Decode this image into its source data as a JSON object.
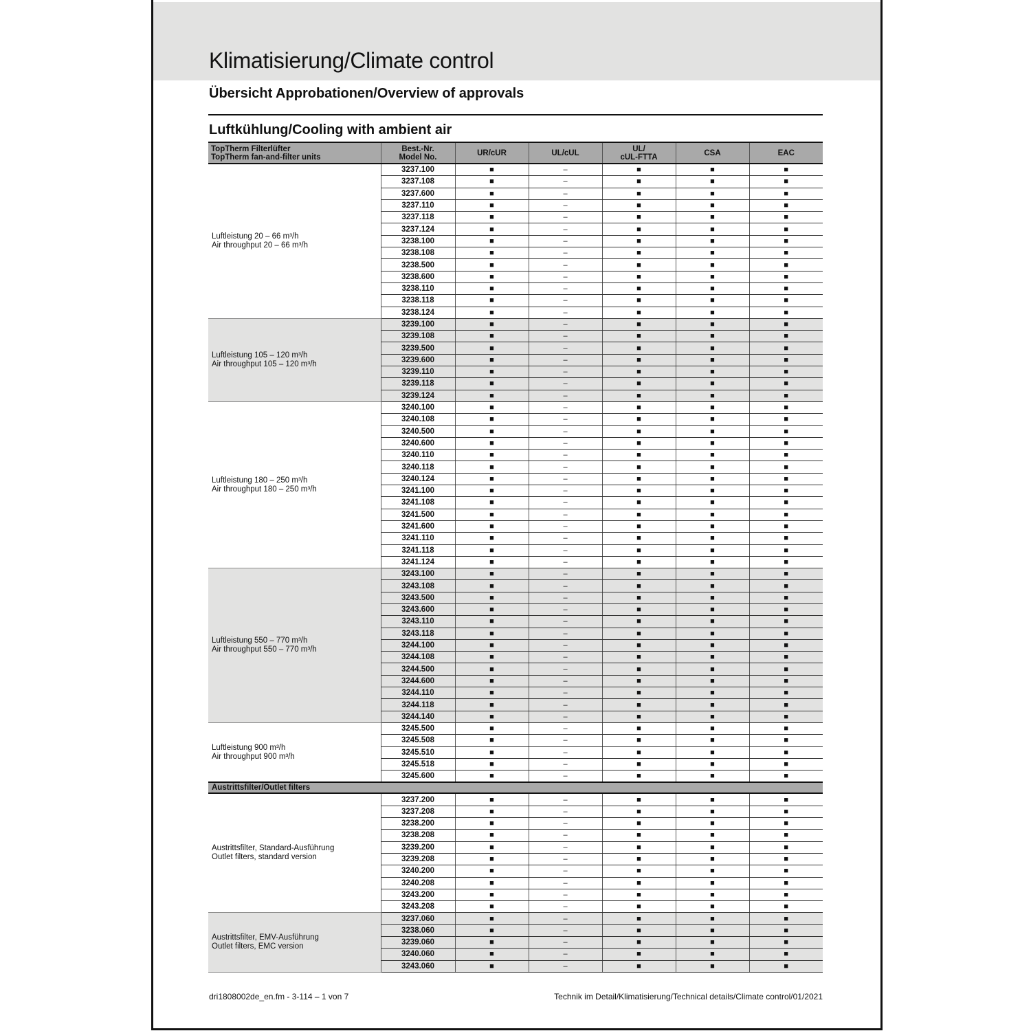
{
  "header": {
    "title": "Klimatisierung/Climate control",
    "subtitle": "Übersicht Approbationen/Overview of approvals"
  },
  "section": {
    "title": "Luftkühlung/Cooling with ambient air"
  },
  "table": {
    "columns": [
      [
        "TopTherm Filterlüfter",
        "TopTherm fan-and-filter units"
      ],
      [
        "Best.-Nr.",
        "Model No."
      ],
      [
        "UR/cUR"
      ],
      [
        "UL/cUL"
      ],
      [
        "UL/",
        "cUL-FTTA"
      ],
      [
        "CSA"
      ],
      [
        "EAC"
      ]
    ],
    "blocks": [
      {
        "groups": [
          {
            "label": [
              "Luftleistung 20 – 66 m³/h",
              "Air throughput 20 – 66 m³/h"
            ],
            "shaded": false,
            "rows": [
              {
                "model": "3237.100",
                "marks": [
                  "■",
                  "–",
                  "■",
                  "■",
                  "■"
                ]
              },
              {
                "model": "3237.108",
                "marks": [
                  "■",
                  "–",
                  "■",
                  "■",
                  "■"
                ]
              },
              {
                "model": "3237.600",
                "marks": [
                  "■",
                  "–",
                  "■",
                  "■",
                  "■"
                ]
              },
              {
                "model": "3237.110",
                "marks": [
                  "■",
                  "–",
                  "■",
                  "■",
                  "■"
                ]
              },
              {
                "model": "3237.118",
                "marks": [
                  "■",
                  "–",
                  "■",
                  "■",
                  "■"
                ]
              },
              {
                "model": "3237.124",
                "marks": [
                  "■",
                  "–",
                  "■",
                  "■",
                  "■"
                ]
              },
              {
                "model": "3238.100",
                "marks": [
                  "■",
                  "–",
                  "■",
                  "■",
                  "■"
                ]
              },
              {
                "model": "3238.108",
                "marks": [
                  "■",
                  "–",
                  "■",
                  "■",
                  "■"
                ]
              },
              {
                "model": "3238.500",
                "marks": [
                  "■",
                  "–",
                  "■",
                  "■",
                  "■"
                ]
              },
              {
                "model": "3238.600",
                "marks": [
                  "■",
                  "–",
                  "■",
                  "■",
                  "■"
                ]
              },
              {
                "model": "3238.110",
                "marks": [
                  "■",
                  "–",
                  "■",
                  "■",
                  "■"
                ]
              },
              {
                "model": "3238.118",
                "marks": [
                  "■",
                  "–",
                  "■",
                  "■",
                  "■"
                ]
              },
              {
                "model": "3238.124",
                "marks": [
                  "■",
                  "–",
                  "■",
                  "■",
                  "■"
                ]
              }
            ]
          },
          {
            "label": [
              "Luftleistung 105 – 120 m³/h",
              "Air throughput 105 – 120 m³/h"
            ],
            "shaded": true,
            "rows": [
              {
                "model": "3239.100",
                "marks": [
                  "■",
                  "–",
                  "■",
                  "■",
                  "■"
                ]
              },
              {
                "model": "3239.108",
                "marks": [
                  "■",
                  "–",
                  "■",
                  "■",
                  "■"
                ]
              },
              {
                "model": "3239.500",
                "marks": [
                  "■",
                  "–",
                  "■",
                  "■",
                  "■"
                ]
              },
              {
                "model": "3239.600",
                "marks": [
                  "■",
                  "–",
                  "■",
                  "■",
                  "■"
                ]
              },
              {
                "model": "3239.110",
                "marks": [
                  "■",
                  "–",
                  "■",
                  "■",
                  "■"
                ]
              },
              {
                "model": "3239.118",
                "marks": [
                  "■",
                  "–",
                  "■",
                  "■",
                  "■"
                ]
              },
              {
                "model": "3239.124",
                "marks": [
                  "■",
                  "–",
                  "■",
                  "■",
                  "■"
                ]
              }
            ]
          },
          {
            "label": [
              "Luftleistung 180 – 250 m³/h",
              "Air throughput 180 – 250 m³/h"
            ],
            "shaded": false,
            "rows": [
              {
                "model": "3240.100",
                "marks": [
                  "■",
                  "–",
                  "■",
                  "■",
                  "■"
                ]
              },
              {
                "model": "3240.108",
                "marks": [
                  "■",
                  "–",
                  "■",
                  "■",
                  "■"
                ]
              },
              {
                "model": "3240.500",
                "marks": [
                  "■",
                  "–",
                  "■",
                  "■",
                  "■"
                ]
              },
              {
                "model": "3240.600",
                "marks": [
                  "■",
                  "–",
                  "■",
                  "■",
                  "■"
                ]
              },
              {
                "model": "3240.110",
                "marks": [
                  "■",
                  "–",
                  "■",
                  "■",
                  "■"
                ]
              },
              {
                "model": "3240.118",
                "marks": [
                  "■",
                  "–",
                  "■",
                  "■",
                  "■"
                ]
              },
              {
                "model": "3240.124",
                "marks": [
                  "■",
                  "–",
                  "■",
                  "■",
                  "■"
                ]
              },
              {
                "model": "3241.100",
                "marks": [
                  "■",
                  "–",
                  "■",
                  "■",
                  "■"
                ]
              },
              {
                "model": "3241.108",
                "marks": [
                  "■",
                  "–",
                  "■",
                  "■",
                  "■"
                ]
              },
              {
                "model": "3241.500",
                "marks": [
                  "■",
                  "–",
                  "■",
                  "■",
                  "■"
                ]
              },
              {
                "model": "3241.600",
                "marks": [
                  "■",
                  "–",
                  "■",
                  "■",
                  "■"
                ]
              },
              {
                "model": "3241.110",
                "marks": [
                  "■",
                  "–",
                  "■",
                  "■",
                  "■"
                ]
              },
              {
                "model": "3241.118",
                "marks": [
                  "■",
                  "–",
                  "■",
                  "■",
                  "■"
                ]
              },
              {
                "model": "3241.124",
                "marks": [
                  "■",
                  "–",
                  "■",
                  "■",
                  "■"
                ]
              }
            ]
          },
          {
            "label": [
              "Luftleistung 550 – 770 m³/h",
              "Air throughput 550 – 770 m³/h"
            ],
            "shaded": true,
            "rows": [
              {
                "model": "3243.100",
                "marks": [
                  "■",
                  "–",
                  "■",
                  "■",
                  "■"
                ]
              },
              {
                "model": "3243.108",
                "marks": [
                  "■",
                  "–",
                  "■",
                  "■",
                  "■"
                ]
              },
              {
                "model": "3243.500",
                "marks": [
                  "■",
                  "–",
                  "■",
                  "■",
                  "■"
                ]
              },
              {
                "model": "3243.600",
                "marks": [
                  "■",
                  "–",
                  "■",
                  "■",
                  "■"
                ]
              },
              {
                "model": "3243.110",
                "marks": [
                  "■",
                  "–",
                  "■",
                  "■",
                  "■"
                ]
              },
              {
                "model": "3243.118",
                "marks": [
                  "■",
                  "–",
                  "■",
                  "■",
                  "■"
                ]
              },
              {
                "model": "3244.100",
                "marks": [
                  "■",
                  "–",
                  "■",
                  "■",
                  "■"
                ]
              },
              {
                "model": "3244.108",
                "marks": [
                  "■",
                  "–",
                  "■",
                  "■",
                  "■"
                ]
              },
              {
                "model": "3244.500",
                "marks": [
                  "■",
                  "–",
                  "■",
                  "■",
                  "■"
                ]
              },
              {
                "model": "3244.600",
                "marks": [
                  "■",
                  "–",
                  "■",
                  "■",
                  "■"
                ]
              },
              {
                "model": "3244.110",
                "marks": [
                  "■",
                  "–",
                  "■",
                  "■",
                  "■"
                ]
              },
              {
                "model": "3244.118",
                "marks": [
                  "■",
                  "–",
                  "■",
                  "■",
                  "■"
                ]
              },
              {
                "model": "3244.140",
                "marks": [
                  "■",
                  "–",
                  "■",
                  "■",
                  "■"
                ]
              }
            ]
          },
          {
            "label": [
              "Luftleistung 900 m³/h",
              "Air throughput 900 m³/h"
            ],
            "shaded": false,
            "rows": [
              {
                "model": "3245.500",
                "marks": [
                  "■",
                  "–",
                  "■",
                  "■",
                  "■"
                ]
              },
              {
                "model": "3245.508",
                "marks": [
                  "■",
                  "–",
                  "■",
                  "■",
                  "■"
                ]
              },
              {
                "model": "3245.510",
                "marks": [
                  "■",
                  "–",
                  "■",
                  "■",
                  "■"
                ]
              },
              {
                "model": "3245.518",
                "marks": [
                  "■",
                  "–",
                  "■",
                  "■",
                  "■"
                ]
              },
              {
                "model": "3245.600",
                "marks": [
                  "■",
                  "–",
                  "■",
                  "■",
                  "■"
                ]
              }
            ]
          }
        ]
      },
      {
        "title": "Austrittsfilter/Outlet filters",
        "groups": [
          {
            "label": [
              "Austrittsfilter, Standard-Ausführung",
              "Outlet filters, standard version"
            ],
            "shaded": false,
            "rows": [
              {
                "model": "3237.200",
                "marks": [
                  "■",
                  "–",
                  "■",
                  "■",
                  "■"
                ]
              },
              {
                "model": "3237.208",
                "marks": [
                  "■",
                  "–",
                  "■",
                  "■",
                  "■"
                ]
              },
              {
                "model": "3238.200",
                "marks": [
                  "■",
                  "–",
                  "■",
                  "■",
                  "■"
                ]
              },
              {
                "model": "3238.208",
                "marks": [
                  "■",
                  "–",
                  "■",
                  "■",
                  "■"
                ]
              },
              {
                "model": "3239.200",
                "marks": [
                  "■",
                  "–",
                  "■",
                  "■",
                  "■"
                ]
              },
              {
                "model": "3239.208",
                "marks": [
                  "■",
                  "–",
                  "■",
                  "■",
                  "■"
                ]
              },
              {
                "model": "3240.200",
                "marks": [
                  "■",
                  "–",
                  "■",
                  "■",
                  "■"
                ]
              },
              {
                "model": "3240.208",
                "marks": [
                  "■",
                  "–",
                  "■",
                  "■",
                  "■"
                ]
              },
              {
                "model": "3243.200",
                "marks": [
                  "■",
                  "–",
                  "■",
                  "■",
                  "■"
                ]
              },
              {
                "model": "3243.208",
                "marks": [
                  "■",
                  "–",
                  "■",
                  "■",
                  "■"
                ]
              }
            ]
          },
          {
            "label": [
              "Austrittsfilter, EMV-Ausführung",
              "Outlet filters, EMC version"
            ],
            "shaded": true,
            "rows": [
              {
                "model": "3237.060",
                "marks": [
                  "■",
                  "–",
                  "■",
                  "■",
                  "■"
                ]
              },
              {
                "model": "3238.060",
                "marks": [
                  "■",
                  "–",
                  "■",
                  "■",
                  "■"
                ]
              },
              {
                "model": "3239.060",
                "marks": [
                  "■",
                  "–",
                  "■",
                  "■",
                  "■"
                ]
              },
              {
                "model": "3240.060",
                "marks": [
                  "■",
                  "–",
                  "■",
                  "■",
                  "■"
                ]
              },
              {
                "model": "3243.060",
                "marks": [
                  "■",
                  "–",
                  "■",
                  "■",
                  "■"
                ]
              }
            ]
          }
        ]
      }
    ]
  },
  "footer": {
    "left": "dri1808002de_en.fm - 3-114 – 1 von 7",
    "right": "Technik im Detail/Klimatisierung/Technical details/Climate control/01/2021"
  }
}
